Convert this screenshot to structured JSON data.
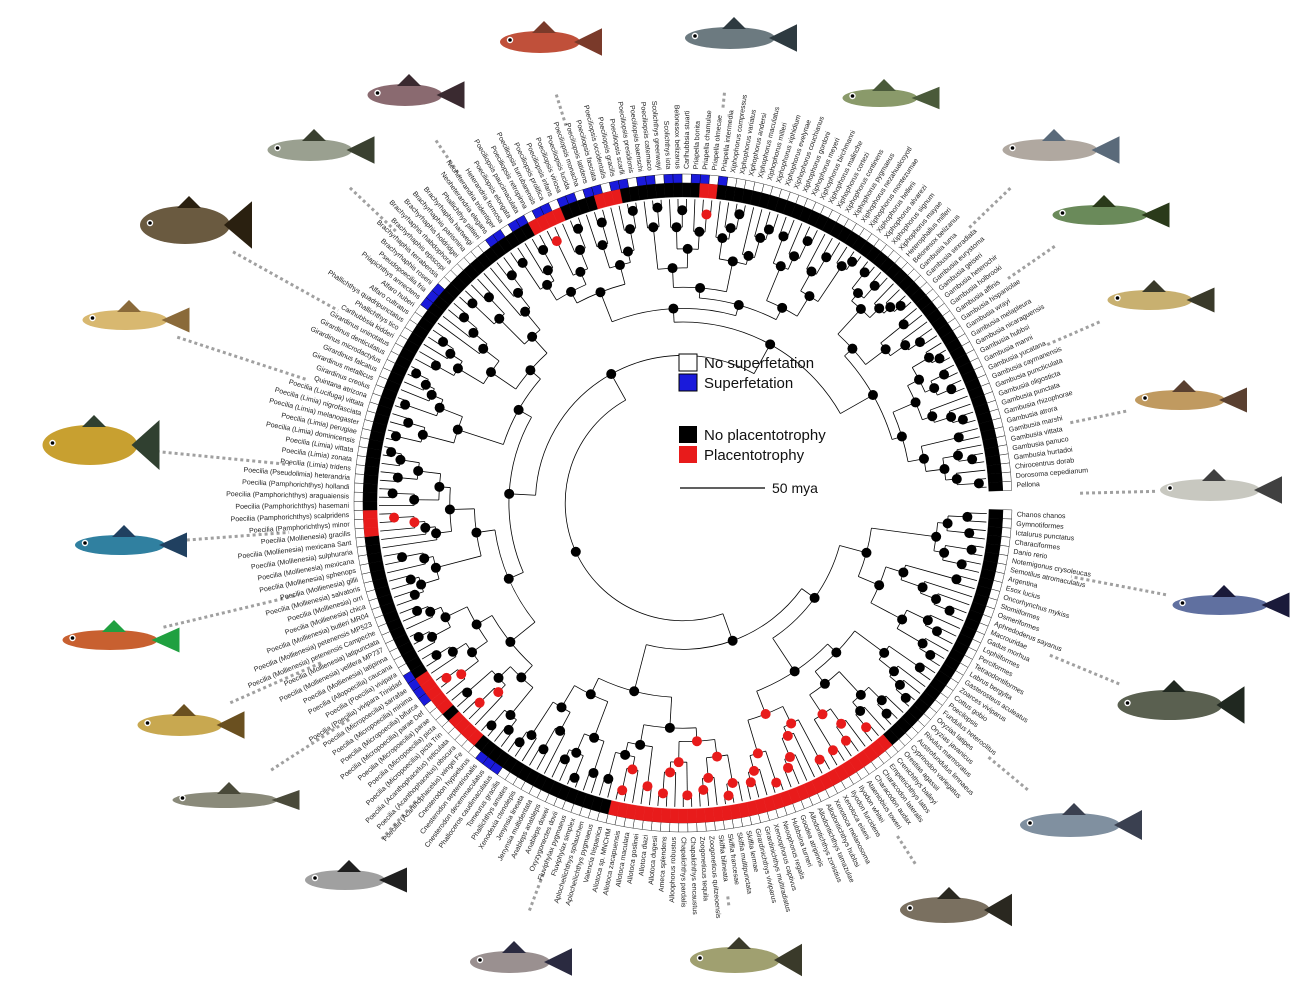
{
  "legend": {
    "superfetation": [
      {
        "label": "No superfetation",
        "color": "#ffffff"
      },
      {
        "label": "Superfetation",
        "color": "#1a1adb"
      }
    ],
    "placentotrophy": [
      {
        "label": "No placentotrophy",
        "color": "#000000"
      },
      {
        "label": "Placentotrophy",
        "color": "#e81b1b"
      }
    ]
  },
  "scale_bar": {
    "label": "50 mya"
  },
  "colors": {
    "branch": "#000000",
    "superfetation": "#1a1adb",
    "placentotrophy": "#e81b1b",
    "ring": "#000000",
    "leader": "#a0a0a0"
  },
  "taxa": [
    "Chanos chanos",
    "Gymnotiformes",
    "Ictalurus punctatus",
    "Characiformes",
    "Danio rerio",
    "Notemigonus crysoleucas",
    "Semotilus atromaculatus",
    "Argentina",
    "Esox lucius",
    "Oncorhynchus mykiss",
    "Stomiiformes",
    "Osmeriformes",
    "Aphredoderus sayanus",
    "Macrouridae",
    "Gadus morhua",
    "Lophiiformes",
    "Perciformes",
    "Tetraodontiformes",
    "Labrus bergylta",
    "Gasterosteus aculeatus",
    "Zoarces viviparus",
    "Cottus gobio",
    "Poecilopsis",
    "Fundulus heteroclitus",
    "Oryzias latipes",
    "Oryzias javanicus",
    "Rivulus marmoratus",
    "Austrofundulus limnaeus",
    "Cyprinodon variegatus",
    "Orestias agassii",
    "Crenichthys baileyi",
    "Empetrichthys latos",
    "Characodon lateralis",
    "Characodon audax",
    "Ataeniobius toweri",
    "Ilyodon whitei",
    "Ilyodon furcidens",
    "Xenotoca eiseni",
    "Xenotoca melanosoma",
    "Allodontichthys hubbsi",
    "Allodontichthys tamazulae",
    "Allodontichthys zonistius",
    "Goodea atripinnis",
    "Hubbsina turneri",
    "Neoophorus regalis",
    "Xenoophorus captivus",
    "Girardinichthys multiradiatus",
    "Girardinichthys viviparus",
    "Skiffia lermae",
    "Skiffia multipunctata",
    "Skiffia francesae",
    "Skiffia bilineata",
    "Zoogoneticus quitzeoensis",
    "Zoogoneticus tequila",
    "Chapalichthys encaustus",
    "Chapalichthys pardalis",
    "Alloophorus robustus",
    "Ameca splendens",
    "Allotoca dugesii",
    "Allotoca diazi",
    "Allotoca goslinei",
    "Allotoca maculata",
    "Allotoca zacapuensis",
    "Allotoca sp. MNCHM",
    "Valencia hispanica",
    "Aplocheilichthys pygmaeus",
    "Aplocheilichthys spilauchen",
    "Fluviphylax simplex",
    "Fluviphylax pygmaeus",
    "Oxyzygonectes dovii",
    "Anableps dowei",
    "Anableps anableps",
    "Jenynsia multidentata",
    "Jenynsia lineata",
    "Xenodexia ctenolepis",
    "Phallichthys amates",
    "Tomeurus gracilis",
    "Phalloceros caudimaculatus",
    "Cnesterodon decemmaculatus",
    "Cnesterodon septentrionalis",
    "Cnesterodon hypselurus",
    "Poecilia (Acanthophacelus) wingei Fe",
    "Poecilia (Acanthophacelus) obscura",
    "Poecilia (Acanthophacelus) reticulata",
    "Poecilia (Micropoecilia) picta Trin",
    "Poecilia (Micropoecilia) picta",
    "Poecilia (Micropoecilia) parae",
    "Poecilia (Micropoecilia) parae Def",
    "Poecilia (Micropoecilia) bifurca",
    "Poecilia (Micropoecilia) minima",
    "Poecilia (Micropoecilia) sarrafae",
    "Poecilia (Poecilia) vivipara Trinidad",
    "Poecilia (Poecilia) vivipara",
    "Poecilia (Allopoecilia) caucana",
    "Poecilia (Mollienesia) latipinna",
    "Poecilia (Mollienesia) velifera MP737",
    "Poecilia (Mollienesia) latipunctata",
    "Poecilia (Mollienesia) petenensis Campeche",
    "Poecilia (Mollienesia) petenensis MP523",
    "Poecilia (Mollienesia) butleri MR04",
    "Poecilia (Mollienesia) chica",
    "Poecilia (Mollienesia) orri",
    "Poecilia (Mollienesia) salvatoris",
    "Poecilia (Mollienesia) gillii",
    "Poecilia (Mollienesia) sphenops",
    "Poecilia (Mollienesia) mexicana",
    "Poecilia (Mollienesia) sulphuraria",
    "Poecilia (Mollienesia) mexicana Sant",
    "Poecilia (Mollienesia) gracilis",
    "Poecilia (Pamphorichthys) minor",
    "Poecilia (Pamphorichthys) scalpridens",
    "Poecilia (Pamphorichthys) hasemani",
    "Poecilia (Pamphorichthys) araguaiensis",
    "Poecilia (Pamphorichthys) hollandi",
    "Poecilia (Pseudolimia) heterandria",
    "Poecilia (Limia) tridens",
    "Poecilia (Limia) zonata",
    "Poecilia (Limia) vittata",
    "Poecilia (Limia) dominicensis",
    "Poecilia (Limia) perugiae",
    "Poecilia (Limia) melanogaster",
    "Poecilia (Limia) nigrofasciata",
    "Poecilia (Lucifuga) vittata",
    "Quintana atrizona",
    "Girardinus creolus",
    "Girardinus metallicus",
    "Girardinus falcatus",
    "Girardinus microdactylus",
    "Girardinus denticulatus",
    "Girardinus uninotatus",
    "Carlhubbsia kidderi",
    "Phallichthys tico",
    "Phallichthys quadripunctatus",
    "Alfaro cultratus",
    "Alfaro huberi",
    "Priapichthys annectens",
    "Pseudopoecilia fria",
    "Brachyrhaphis roseni",
    "Brachyrhaphis terrabensis",
    "Brachyrhaphis episcopi",
    "Brachyrhaphis rhabdophora",
    "Brachyrhaphis holdridgei",
    "Brachyrhaphis parismina",
    "Brachyrhaphis hartwegi",
    "Phallichthys pittieri",
    "Neoheterandria elegans",
    "Neoheterandria tridentiger",
    "Heterandria formosa",
    "Poeciliopsis elongata",
    "Poeciliopsis paucimaculata",
    "Poeciliopsis retropinna",
    "Poeciliopsis turrubarensis",
    "Poeciliopsis prolifica",
    "Poeciliopsis infans",
    "Poeciliopsis viriosa",
    "Poeciliopsis lucida",
    "Poeciliopsis monacha",
    "Poeciliopsis latidens",
    "Poeciliopsis fasciata",
    "Poeciliopsis occidentalis",
    "Poeciliopsis gracilis",
    "Poeciliopsis scarlli",
    "Poeciliopsis presidionis",
    "Poeciliopsis baenschi",
    "Poeciliopsis catemaco",
    "Scolichthys greenwayi",
    "Scolichthys iota",
    "Belonesox belizanus",
    "Carlhubbsia stuarti",
    "Priapella bonita",
    "Priapella chamulae",
    "Priapella olmecae",
    "Priapella intermedia",
    "Xiphophorus compressus",
    "Xiphophorus variatus",
    "Xiphophorus andersi",
    "Xiphophorus maculatus",
    "Xiphophorus milleri",
    "Xiphophorus xiphidium",
    "Xiphophorus evelynae",
    "Xiphophorus couchianus",
    "Xiphophorus gordoni",
    "Xiphophorus meyeri",
    "Xiphophorus birchmanni",
    "Xiphophorus malinche",
    "Xiphophorus cortezi",
    "Xiphophorus continens",
    "Xiphophorus pygmaeus",
    "Xiphophorus nezahualcoyotl",
    "Xiphophorus montezumae",
    "Xiphophorus hellerii",
    "Xiphophorus alvarezi",
    "Xiphophorus signum",
    "Xiphophorus mayae",
    "Heterophallus milleri",
    "Belonesox belizanus",
    "Gambusia luma",
    "Gambusia sexradiata",
    "Gambusia eurystoma",
    "Gambusia geiseri",
    "Gambusia heterochir",
    "Gambusia holbrooki",
    "Gambusia affinis",
    "Gambusia hispaniolae",
    "Gambusia wrayi",
    "Gambusia melapleura",
    "Gambusia nicaraguensis",
    "Gambusia hubbsi",
    "Gambusia manni",
    "Gambusia yucatana",
    "Gambusia caymanensis",
    "Gambusia puncticulata",
    "Gambusia oligosticta",
    "Gambusia punctata",
    "Gambusia rhizophorae",
    "Gambusia atrora",
    "Gambusia marshi",
    "Gambusia vittata",
    "Gambusia panuco",
    "Gambusia hurtadoi",
    "Chirocentrus dorab",
    "Dorosoma cepedianum",
    "Pellona"
  ]
}
